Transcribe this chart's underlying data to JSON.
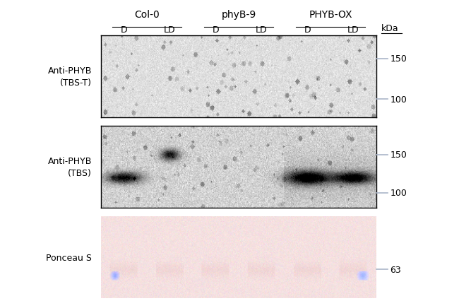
{
  "title": "",
  "background_color": "#ffffff",
  "panel1_label": "Anti-PHYB\n(TBS-T)",
  "panel2_label": "Anti-PHYB\n(TBS)",
  "panel3_label": "Ponceau S",
  "col_labels": [
    "Col-0",
    "phyB-9",
    "PHYB-OX"
  ],
  "sub_labels": [
    "D",
    "LD",
    "D",
    "LD",
    "D",
    "LD"
  ],
  "kda_label": "kDa",
  "marker1_150": "150",
  "marker1_100": "100",
  "marker2_150": "150",
  "marker2_100": "100",
  "marker3_63": "63",
  "panel1_bg": "#d8d8d8",
  "panel2_bg": "#c8c8c8",
  "panel3_bg_color": "#f5e8e8",
  "marker_color": "#aab5c8",
  "text_color": "#000000"
}
